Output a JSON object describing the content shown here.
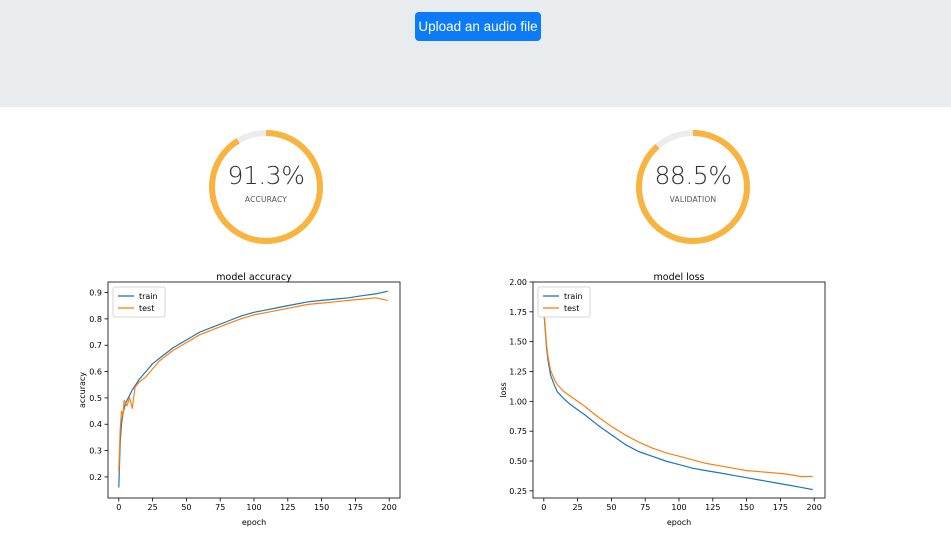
{
  "header": {
    "upload_label": "Upload an audio file"
  },
  "gauges": [
    {
      "value": 91.3,
      "display": "91.3%",
      "label": "ACCURACY",
      "color": "#f9b43f",
      "track": "#ececec"
    },
    {
      "value": 88.5,
      "display": "88.5%",
      "label": "VALIDATION",
      "color": "#f9b43f",
      "track": "#ececec"
    }
  ],
  "chart_data": [
    {
      "type": "line",
      "title": "model accuracy",
      "xlabel": "epoch",
      "ylabel": "accuracy",
      "xlim": [
        -8,
        208
      ],
      "ylim": [
        0.12,
        0.94
      ],
      "xticks": [
        0,
        25,
        50,
        75,
        100,
        125,
        150,
        175,
        200
      ],
      "yticks": [
        0.2,
        0.3,
        0.4,
        0.5,
        0.6,
        0.7,
        0.8,
        0.9
      ],
      "ytick_labels": [
        "0.2",
        "0.3",
        "0.4",
        "0.5",
        "0.6",
        "0.7",
        "0.8",
        "0.9"
      ],
      "legend": "upper-left",
      "series": [
        {
          "name": "train",
          "color": "#1f77b4",
          "x": [
            0,
            1,
            2,
            3,
            5,
            8,
            10,
            15,
            20,
            25,
            30,
            40,
            50,
            60,
            70,
            80,
            90,
            100,
            110,
            120,
            130,
            140,
            150,
            160,
            170,
            180,
            190,
            199
          ],
          "y": [
            0.16,
            0.33,
            0.4,
            0.44,
            0.48,
            0.51,
            0.53,
            0.57,
            0.6,
            0.63,
            0.65,
            0.69,
            0.72,
            0.75,
            0.77,
            0.79,
            0.81,
            0.825,
            0.835,
            0.845,
            0.855,
            0.865,
            0.87,
            0.875,
            0.88,
            0.888,
            0.895,
            0.905
          ]
        },
        {
          "name": "test",
          "color": "#ff7f0e",
          "x": [
            0,
            1,
            2,
            3,
            4,
            6,
            8,
            10,
            12,
            15,
            20,
            25,
            30,
            40,
            50,
            60,
            70,
            80,
            90,
            100,
            110,
            120,
            130,
            140,
            150,
            160,
            170,
            180,
            190,
            199
          ],
          "y": [
            0.22,
            0.38,
            0.45,
            0.43,
            0.49,
            0.47,
            0.5,
            0.46,
            0.54,
            0.56,
            0.58,
            0.61,
            0.64,
            0.68,
            0.71,
            0.74,
            0.76,
            0.78,
            0.8,
            0.815,
            0.825,
            0.835,
            0.845,
            0.855,
            0.86,
            0.865,
            0.87,
            0.875,
            0.88,
            0.87
          ]
        }
      ]
    },
    {
      "type": "line",
      "title": "model loss",
      "xlabel": "epoch",
      "ylabel": "loss",
      "xlim": [
        -8,
        208
      ],
      "ylim": [
        0.19,
        2.0
      ],
      "xticks": [
        0,
        25,
        50,
        75,
        100,
        125,
        150,
        175,
        200
      ],
      "yticks": [
        0.25,
        0.5,
        0.75,
        1.0,
        1.25,
        1.5,
        1.75,
        2.0
      ],
      "ytick_labels": [
        "0.25",
        "0.50",
        "0.75",
        "1.00",
        "1.25",
        "1.50",
        "1.75",
        "2.00"
      ],
      "legend": "upper-left",
      "series": [
        {
          "name": "train",
          "color": "#1f77b4",
          "x": [
            0,
            1,
            2,
            3,
            5,
            8,
            10,
            15,
            20,
            25,
            30,
            40,
            50,
            60,
            70,
            80,
            90,
            100,
            110,
            120,
            130,
            140,
            150,
            160,
            170,
            180,
            190,
            199
          ],
          "y": [
            1.76,
            1.6,
            1.45,
            1.35,
            1.22,
            1.13,
            1.08,
            1.02,
            0.97,
            0.93,
            0.89,
            0.8,
            0.72,
            0.64,
            0.58,
            0.54,
            0.5,
            0.47,
            0.44,
            0.42,
            0.4,
            0.38,
            0.36,
            0.34,
            0.32,
            0.3,
            0.28,
            0.26
          ]
        },
        {
          "name": "test",
          "color": "#ff7f0e",
          "x": [
            0,
            1,
            2,
            3,
            5,
            8,
            10,
            15,
            20,
            25,
            30,
            40,
            50,
            60,
            70,
            80,
            90,
            100,
            110,
            120,
            130,
            140,
            150,
            160,
            170,
            180,
            190,
            199
          ],
          "y": [
            1.78,
            1.62,
            1.48,
            1.38,
            1.26,
            1.18,
            1.14,
            1.08,
            1.04,
            1.0,
            0.96,
            0.87,
            0.79,
            0.72,
            0.66,
            0.61,
            0.57,
            0.54,
            0.51,
            0.48,
            0.46,
            0.44,
            0.42,
            0.41,
            0.4,
            0.39,
            0.37,
            0.37
          ]
        }
      ]
    }
  ]
}
